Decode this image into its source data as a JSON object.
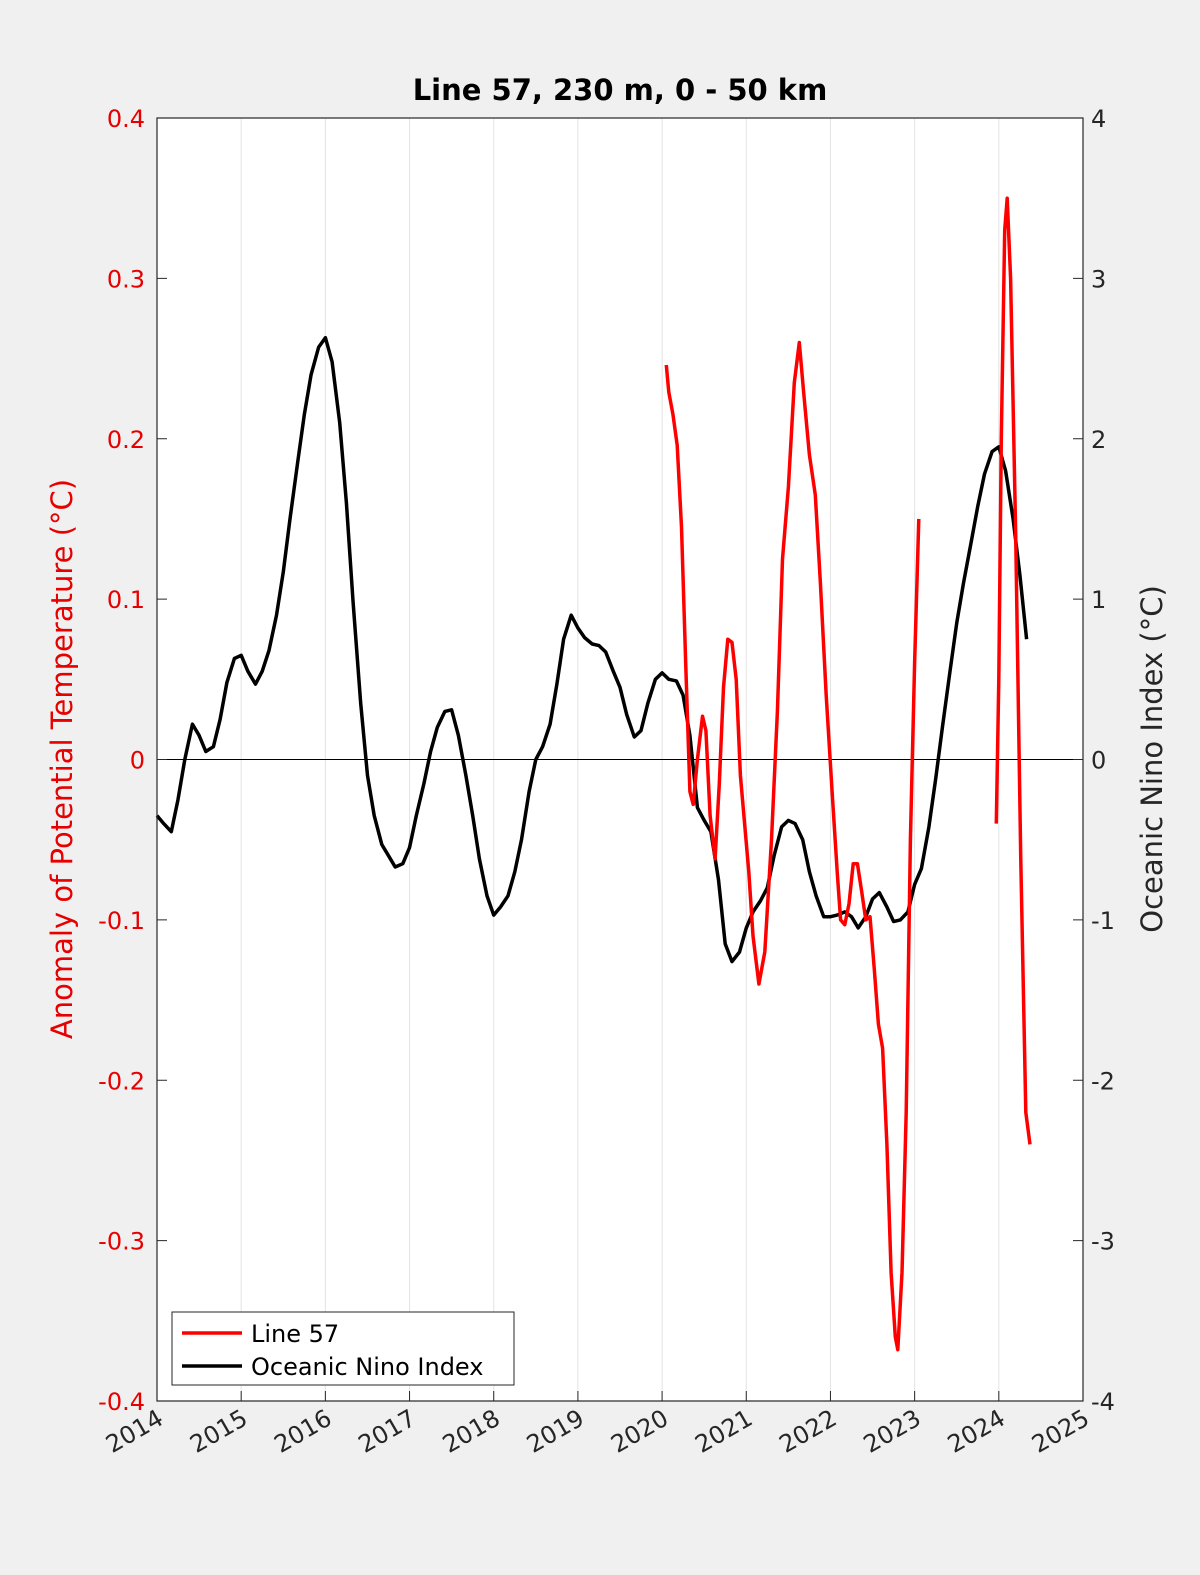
{
  "chart_data": {
    "type": "line",
    "title": "Line 57, 230 m, 0 - 50 km",
    "xlabel": "",
    "ylabel_left": "Anomaly of Potential Temperature (°C)",
    "ylabel_right": "Oceanic Nino Index (°C)",
    "xlim": [
      2014,
      2025
    ],
    "ylim_left": [
      -0.4,
      0.4
    ],
    "ylim_right": [
      -4,
      4
    ],
    "x_ticks": [
      "2014",
      "2015",
      "2016",
      "2017",
      "2018",
      "2019",
      "2020",
      "2021",
      "2022",
      "2023",
      "2024",
      "2025"
    ],
    "y_ticks_left": [
      "-0.4",
      "-0.3",
      "-0.2",
      "-0.1",
      "0",
      "0.1",
      "0.2",
      "0.3",
      "0.4"
    ],
    "y_ticks_right": [
      "-4",
      "-3",
      "-2",
      "-1",
      "0",
      "1",
      "2",
      "3",
      "4"
    ],
    "grid_x": true,
    "zero_line": true,
    "legend_position": "bottom-left",
    "colors": {
      "line57": "#ff0000",
      "oni": "#000000",
      "left_axis": "#e60000",
      "right_axis": "#262626"
    },
    "series": [
      {
        "name": "Line 57",
        "axis": "left",
        "segments": [
          [
            [
              2020.05,
              0.246
            ],
            [
              2020.08,
              0.229
            ],
            [
              2020.13,
              0.215
            ],
            [
              2020.18,
              0.196
            ],
            [
              2020.23,
              0.145
            ],
            [
              2020.28,
              0.06
            ],
            [
              2020.33,
              -0.02
            ],
            [
              2020.37,
              -0.028
            ],
            [
              2020.42,
              0.0
            ],
            [
              2020.48,
              0.027
            ],
            [
              2020.52,
              0.018
            ],
            [
              2020.57,
              -0.035
            ],
            [
              2020.63,
              -0.062
            ],
            [
              2020.68,
              -0.015
            ],
            [
              2020.73,
              0.045
            ],
            [
              2020.78,
              0.075
            ],
            [
              2020.83,
              0.073
            ],
            [
              2020.88,
              0.05
            ],
            [
              2020.93,
              -0.01
            ],
            [
              2020.98,
              -0.04
            ],
            [
              2021.03,
              -0.07
            ],
            [
              2021.08,
              -0.11
            ],
            [
              2021.15,
              -0.14
            ],
            [
              2021.22,
              -0.12
            ],
            [
              2021.3,
              -0.05
            ],
            [
              2021.37,
              0.03
            ],
            [
              2021.43,
              0.125
            ],
            [
              2021.5,
              0.17
            ],
            [
              2021.57,
              0.235
            ],
            [
              2021.63,
              0.26
            ],
            [
              2021.68,
              0.23
            ],
            [
              2021.75,
              0.19
            ],
            [
              2021.82,
              0.165
            ],
            [
              2021.88,
              0.11
            ],
            [
              2021.95,
              0.04
            ],
            [
              2022.02,
              -0.02
            ],
            [
              2022.08,
              -0.07
            ],
            [
              2022.12,
              -0.1
            ],
            [
              2022.17,
              -0.103
            ],
            [
              2022.22,
              -0.09
            ],
            [
              2022.27,
              -0.065
            ],
            [
              2022.32,
              -0.065
            ],
            [
              2022.37,
              -0.082
            ],
            [
              2022.42,
              -0.1
            ],
            [
              2022.47,
              -0.098
            ],
            [
              2022.52,
              -0.13
            ],
            [
              2022.57,
              -0.165
            ],
            [
              2022.62,
              -0.18
            ],
            [
              2022.67,
              -0.24
            ],
            [
              2022.72,
              -0.32
            ],
            [
              2022.77,
              -0.36
            ],
            [
              2022.8,
              -0.368
            ],
            [
              2022.85,
              -0.32
            ],
            [
              2022.9,
              -0.22
            ],
            [
              2022.95,
              -0.05
            ],
            [
              2023.0,
              0.06
            ],
            [
              2023.05,
              0.15
            ]
          ],
          [
            [
              2023.97,
              -0.04
            ],
            [
              2024.0,
              0.05
            ],
            [
              2024.03,
              0.2
            ],
            [
              2024.07,
              0.33
            ],
            [
              2024.1,
              0.35
            ],
            [
              2024.14,
              0.3
            ],
            [
              2024.2,
              0.14
            ],
            [
              2024.26,
              -0.06
            ],
            [
              2024.32,
              -0.22
            ],
            [
              2024.37,
              -0.24
            ]
          ]
        ]
      },
      {
        "name": "Oceanic Nino Index",
        "axis": "right",
        "points": [
          [
            2014.0,
            -0.35
          ],
          [
            2014.08,
            -0.4
          ],
          [
            2014.17,
            -0.45
          ],
          [
            2014.25,
            -0.25
          ],
          [
            2014.33,
            0.0
          ],
          [
            2014.42,
            0.22
          ],
          [
            2014.5,
            0.15
          ],
          [
            2014.58,
            0.05
          ],
          [
            2014.67,
            0.08
          ],
          [
            2014.75,
            0.25
          ],
          [
            2014.83,
            0.48
          ],
          [
            2014.92,
            0.63
          ],
          [
            2015.0,
            0.65
          ],
          [
            2015.08,
            0.55
          ],
          [
            2015.17,
            0.47
          ],
          [
            2015.25,
            0.55
          ],
          [
            2015.33,
            0.68
          ],
          [
            2015.42,
            0.9
          ],
          [
            2015.5,
            1.17
          ],
          [
            2015.58,
            1.5
          ],
          [
            2015.67,
            1.85
          ],
          [
            2015.75,
            2.15
          ],
          [
            2015.83,
            2.4
          ],
          [
            2015.92,
            2.57
          ],
          [
            2016.0,
            2.63
          ],
          [
            2016.08,
            2.48
          ],
          [
            2016.17,
            2.1
          ],
          [
            2016.25,
            1.6
          ],
          [
            2016.33,
            0.98
          ],
          [
            2016.42,
            0.35
          ],
          [
            2016.5,
            -0.1
          ],
          [
            2016.58,
            -0.35
          ],
          [
            2016.67,
            -0.53
          ],
          [
            2016.75,
            -0.6
          ],
          [
            2016.83,
            -0.67
          ],
          [
            2016.92,
            -0.65
          ],
          [
            2017.0,
            -0.55
          ],
          [
            2017.08,
            -0.35
          ],
          [
            2017.17,
            -0.15
          ],
          [
            2017.25,
            0.05
          ],
          [
            2017.33,
            0.2
          ],
          [
            2017.42,
            0.3
          ],
          [
            2017.5,
            0.31
          ],
          [
            2017.58,
            0.15
          ],
          [
            2017.67,
            -0.1
          ],
          [
            2017.75,
            -0.35
          ],
          [
            2017.83,
            -0.62
          ],
          [
            2017.92,
            -0.85
          ],
          [
            2018.0,
            -0.97
          ],
          [
            2018.08,
            -0.92
          ],
          [
            2018.17,
            -0.85
          ],
          [
            2018.25,
            -0.7
          ],
          [
            2018.33,
            -0.5
          ],
          [
            2018.42,
            -0.2
          ],
          [
            2018.5,
            0.0
          ],
          [
            2018.58,
            0.08
          ],
          [
            2018.67,
            0.22
          ],
          [
            2018.75,
            0.47
          ],
          [
            2018.83,
            0.75
          ],
          [
            2018.92,
            0.9
          ],
          [
            2019.0,
            0.82
          ],
          [
            2019.08,
            0.76
          ],
          [
            2019.17,
            0.72
          ],
          [
            2019.25,
            0.71
          ],
          [
            2019.33,
            0.67
          ],
          [
            2019.42,
            0.55
          ],
          [
            2019.5,
            0.45
          ],
          [
            2019.58,
            0.28
          ],
          [
            2019.67,
            0.14
          ],
          [
            2019.75,
            0.18
          ],
          [
            2019.83,
            0.35
          ],
          [
            2019.92,
            0.5
          ],
          [
            2020.0,
            0.54
          ],
          [
            2020.08,
            0.5
          ],
          [
            2020.17,
            0.49
          ],
          [
            2020.25,
            0.4
          ],
          [
            2020.33,
            0.15
          ],
          [
            2020.42,
            -0.3
          ],
          [
            2020.5,
            -0.38
          ],
          [
            2020.58,
            -0.45
          ],
          [
            2020.67,
            -0.75
          ],
          [
            2020.75,
            -1.15
          ],
          [
            2020.83,
            -1.26
          ],
          [
            2020.92,
            -1.2
          ],
          [
            2021.0,
            -1.05
          ],
          [
            2021.08,
            -0.95
          ],
          [
            2021.17,
            -0.88
          ],
          [
            2021.25,
            -0.8
          ],
          [
            2021.33,
            -0.6
          ],
          [
            2021.42,
            -0.42
          ],
          [
            2021.5,
            -0.38
          ],
          [
            2021.58,
            -0.4
          ],
          [
            2021.67,
            -0.5
          ],
          [
            2021.75,
            -0.7
          ],
          [
            2021.83,
            -0.85
          ],
          [
            2021.92,
            -0.98
          ],
          [
            2022.0,
            -0.98
          ],
          [
            2022.08,
            -0.97
          ],
          [
            2022.17,
            -0.95
          ],
          [
            2022.25,
            -0.98
          ],
          [
            2022.33,
            -1.05
          ],
          [
            2022.42,
            -0.98
          ],
          [
            2022.5,
            -0.87
          ],
          [
            2022.58,
            -0.83
          ],
          [
            2022.67,
            -0.92
          ],
          [
            2022.75,
            -1.01
          ],
          [
            2022.83,
            -1.0
          ],
          [
            2022.92,
            -0.95
          ],
          [
            2023.0,
            -0.78
          ],
          [
            2023.08,
            -0.68
          ],
          [
            2023.17,
            -0.42
          ],
          [
            2023.25,
            -0.12
          ],
          [
            2023.33,
            0.2
          ],
          [
            2023.42,
            0.55
          ],
          [
            2023.5,
            0.85
          ],
          [
            2023.58,
            1.1
          ],
          [
            2023.67,
            1.35
          ],
          [
            2023.75,
            1.58
          ],
          [
            2023.83,
            1.78
          ],
          [
            2023.92,
            1.92
          ],
          [
            2024.0,
            1.95
          ],
          [
            2024.08,
            1.8
          ],
          [
            2024.17,
            1.5
          ],
          [
            2024.25,
            1.15
          ],
          [
            2024.33,
            0.75
          ]
        ]
      }
    ]
  }
}
